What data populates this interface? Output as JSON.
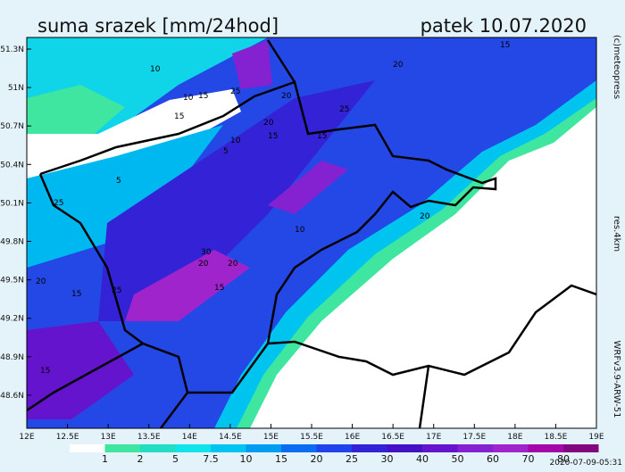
{
  "title": "suma srazek [mm/24hod]",
  "date": "patek 10.07.2020",
  "lat_labels": [
    "51.3N",
    "51N",
    "50.7N",
    "50.4N",
    "50.1N",
    "49.8N",
    "49.5N",
    "49.2N",
    "48.9N",
    "48.6N"
  ],
  "lon_labels": [
    "12E",
    "12.5E",
    "13E",
    "13.5E",
    "14E",
    "14.5E",
    "15E",
    "15.5E",
    "16E",
    "16.5E",
    "17E",
    "17.5E",
    "18E",
    "18.5E",
    "19E"
  ],
  "copyright": "(c)meteopress",
  "resolution": "res.4km",
  "model": "WRFv3.9-ARW-51",
  "timestamp": "2020-07-09-05:31",
  "legend": {
    "levels": [
      1,
      2,
      5,
      7.5,
      10,
      15,
      20,
      25,
      30,
      40,
      50,
      60,
      70,
      80
    ],
    "colors": [
      "#ffffff",
      "#3ee6a0",
      "#22dcc4",
      "#10e4ea",
      "#00c4f0",
      "#009cf2",
      "#0a6cf0",
      "#2044ec",
      "#3422d6",
      "#4412c4",
      "#6414cc",
      "#8422d2",
      "#a024cc",
      "#a406a8",
      "#82067e"
    ]
  },
  "contour_labels": [
    10,
    15,
    10,
    15,
    25,
    20,
    10,
    15,
    20,
    15,
    5,
    25,
    20,
    15,
    5,
    20,
    25,
    30,
    15,
    20,
    25,
    15,
    20,
    20,
    10,
    15
  ]
}
